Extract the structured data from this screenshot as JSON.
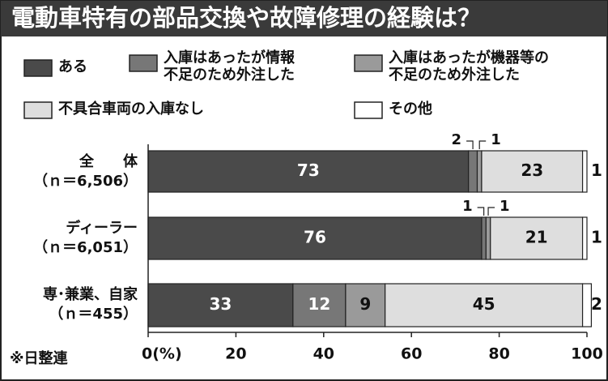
{
  "chart_data": {
    "type": "stacked-barh",
    "title": "電動車特有の部品交換や故障修理の経験は？",
    "categories": [
      "全　　体\n（ｎ＝6,506）",
      "ディーラー\n（ｎ＝6,051）",
      "専･兼業、自家\n（ｎ＝455）"
    ],
    "series": [
      {
        "name": "ある",
        "color": "#4a4a4a",
        "values": [
          73,
          76,
          33
        ]
      },
      {
        "name": "入庫はあったが情報\n不足のため外注した",
        "color": "#777777",
        "values": [
          2,
          1,
          12
        ]
      },
      {
        "name": "入庫はあったが機器等の\n不足のため外注した",
        "color": "#9a9a9a",
        "values": [
          1,
          1,
          9
        ]
      },
      {
        "name": "不具合車両の入庫なし",
        "color": "#dedede",
        "values": [
          23,
          21,
          45
        ]
      },
      {
        "name": "その他",
        "color": "#ffffff",
        "values": [
          1,
          1,
          2
        ]
      }
    ],
    "xlim": [
      0,
      100
    ],
    "xticks": [
      {
        "value": 0,
        "label": "0(%)"
      },
      20,
      40,
      60,
      80,
      100
    ],
    "source": "※日整連"
  }
}
